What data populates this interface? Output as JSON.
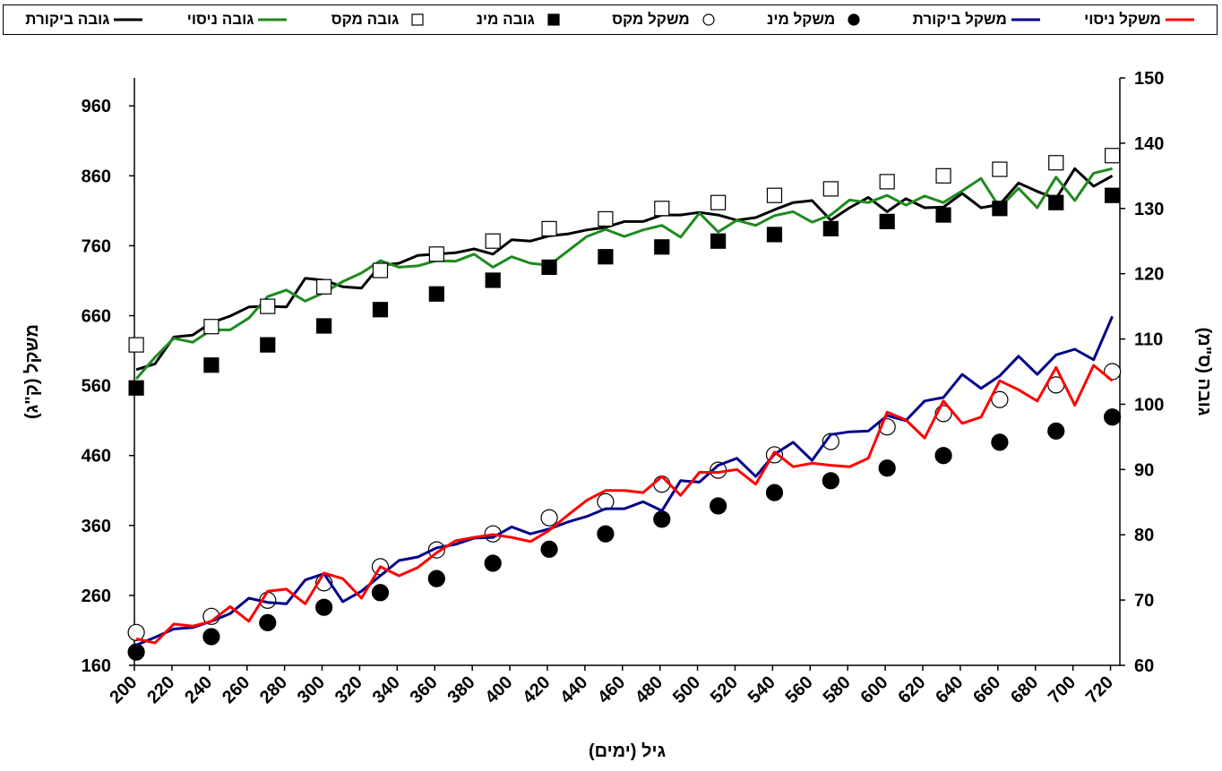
{
  "chart_data": {
    "type": "line",
    "xlabel": "גיל (ימים)",
    "ylabel": "משקל (ק\"ג)",
    "y2label": "גובה (ס\"מ)",
    "xlim": [
      200,
      725
    ],
    "xticks": [
      200,
      220,
      240,
      260,
      280,
      300,
      320,
      340,
      360,
      380,
      400,
      420,
      440,
      460,
      480,
      500,
      520,
      540,
      560,
      580,
      600,
      620,
      640,
      660,
      680,
      700,
      720
    ],
    "ylim": [
      160,
      1000
    ],
    "yticks": [
      160,
      260,
      360,
      460,
      560,
      660,
      760,
      860,
      960
    ],
    "y2lim": [
      60,
      150
    ],
    "y2ticks": [
      60,
      70,
      80,
      90,
      100,
      110,
      120,
      130,
      140,
      150
    ],
    "series": [
      {
        "name": "גובה ביקורת",
        "color": "#000000",
        "marker": "line",
        "axis": "y2",
        "x": [
          201,
          211,
          221,
          231,
          241,
          251,
          261,
          271,
          281,
          291,
          301,
          311,
          321,
          331,
          341,
          351,
          361,
          371,
          381,
          391,
          401,
          411,
          421,
          431,
          441,
          451,
          461,
          471,
          481,
          491,
          501,
          511,
          521,
          531,
          541,
          551,
          561,
          571,
          581,
          591,
          601,
          611,
          621,
          631,
          641,
          651,
          661,
          671,
          681,
          691,
          701,
          711,
          721
        ],
        "values": [
          105.3,
          106.2,
          110.3,
          110.6,
          112.5,
          113.5,
          114.9,
          115,
          114.9,
          119.3,
          119,
          118,
          117.8,
          121.3,
          121.6,
          122.8,
          123,
          123.2,
          123.8,
          123,
          125.2,
          125,
          125.8,
          126.1,
          126.7,
          127.1,
          128,
          128,
          129,
          129,
          129.4,
          129,
          128.2,
          128.6,
          129.8,
          130.9,
          131.2,
          128.2,
          130.1,
          131.7,
          129.5,
          131.5,
          130.1,
          130.2,
          132.3,
          130.1,
          130.6,
          133.9,
          132.6,
          131.5,
          136.1,
          133.4,
          135
        ]
      },
      {
        "name": "גובה ניסוי",
        "color": "#1f8a1f",
        "marker": "line",
        "axis": "y2",
        "x": [
          201,
          211,
          221,
          231,
          241,
          251,
          261,
          271,
          281,
          291,
          301,
          311,
          321,
          331,
          341,
          351,
          361,
          371,
          381,
          391,
          401,
          411,
          421,
          431,
          441,
          451,
          461,
          471,
          481,
          491,
          501,
          511,
          521,
          531,
          541,
          551,
          561,
          571,
          581,
          591,
          601,
          611,
          621,
          631,
          641,
          651,
          661,
          671,
          681,
          691,
          701,
          711,
          721
        ],
        "values": [
          103.9,
          107.2,
          110.1,
          109.5,
          111.4,
          111.4,
          113.2,
          116.5,
          117.5,
          115.8,
          117.1,
          118.8,
          120.1,
          122,
          121,
          121.2,
          122,
          121.9,
          123,
          121,
          122.6,
          121.6,
          121.3,
          123.5,
          125.7,
          126.8,
          125.7,
          126.7,
          127.4,
          125.6,
          129.3,
          126.4,
          128.2,
          127.4,
          128.9,
          129.5,
          127.9,
          129,
          131.3,
          130.9,
          132,
          130.5,
          131.9,
          130.9,
          132.7,
          134.6,
          130.1,
          133.1,
          130.1,
          134.8,
          131.2,
          135.4,
          136.1
        ]
      },
      {
        "name": "גובה מקס",
        "color": "#000000",
        "marker": "square-open",
        "axis": "y2",
        "x": [
          201,
          241,
          271,
          301,
          331,
          361,
          391,
          421,
          451,
          481,
          511,
          541,
          571,
          601,
          631,
          661,
          691,
          721
        ],
        "values": [
          109.1,
          111.9,
          115,
          118,
          120.5,
          123,
          125,
          126.9,
          128.4,
          130,
          130.9,
          132,
          133,
          134.1,
          135,
          136,
          137,
          138.1
        ]
      },
      {
        "name": "גובה מינ",
        "color": "#000000",
        "marker": "square",
        "axis": "y2",
        "x": [
          201,
          241,
          271,
          301,
          331,
          361,
          391,
          421,
          451,
          481,
          511,
          541,
          571,
          601,
          631,
          661,
          691,
          721
        ],
        "values": [
          102.5,
          106,
          109.1,
          112,
          114.5,
          116.9,
          119,
          121,
          122.6,
          124.1,
          125,
          126,
          126.9,
          128,
          129,
          130,
          130.9,
          132
        ]
      },
      {
        "name": "משקל מקס",
        "color": "#000000",
        "marker": "circle-open",
        "axis": "y",
        "x": [
          201,
          241,
          271,
          301,
          331,
          361,
          391,
          421,
          451,
          481,
          511,
          541,
          571,
          601,
          631,
          661,
          691,
          721
        ],
        "values": [
          207,
          230,
          253,
          278,
          301,
          325,
          348,
          371,
          394,
          419,
          439,
          461,
          480,
          501,
          520,
          540,
          561,
          580
        ]
      },
      {
        "name": "משקל מינ",
        "color": "#000000",
        "marker": "circle",
        "axis": "y",
        "x": [
          201,
          241,
          271,
          301,
          331,
          361,
          391,
          421,
          451,
          481,
          511,
          541,
          571,
          601,
          631,
          661,
          691,
          721
        ],
        "values": [
          179,
          201,
          221,
          243,
          264,
          284,
          306,
          326,
          348,
          369,
          388,
          407,
          424,
          442,
          460,
          479,
          495,
          515
        ]
      },
      {
        "name": "משקל ביקורת",
        "color": "#00008b",
        "marker": "line",
        "axis": "y",
        "x": [
          201,
          211,
          221,
          231,
          241,
          251,
          261,
          271,
          281,
          291,
          301,
          311,
          321,
          331,
          341,
          351,
          361,
          371,
          381,
          391,
          401,
          411,
          421,
          431,
          441,
          451,
          461,
          471,
          481,
          491,
          501,
          511,
          521,
          531,
          541,
          551,
          561,
          571,
          581,
          591,
          601,
          611,
          621,
          631,
          641,
          651,
          661,
          671,
          681,
          691,
          701,
          711,
          721
        ],
        "values": [
          189,
          200,
          212,
          214,
          223,
          234,
          256,
          250,
          248,
          282,
          291,
          251,
          266,
          288,
          310,
          315,
          328,
          333,
          342,
          343,
          358,
          348,
          355,
          365,
          373,
          384,
          384,
          394,
          381,
          424,
          422,
          446,
          456,
          430,
          462,
          479,
          453,
          490,
          494,
          495,
          517,
          510,
          538,
          543,
          576,
          556,
          574,
          602,
          576,
          604,
          612,
          597,
          659
        ]
      },
      {
        "name": "משקל ניסוי",
        "color": "#ff0000",
        "marker": "line",
        "axis": "y",
        "x": [
          201,
          211,
          221,
          231,
          241,
          251,
          261,
          271,
          281,
          291,
          301,
          311,
          321,
          331,
          341,
          351,
          361,
          371,
          381,
          391,
          401,
          411,
          421,
          431,
          441,
          451,
          461,
          471,
          481,
          491,
          501,
          511,
          521,
          531,
          541,
          551,
          561,
          571,
          581,
          591,
          601,
          611,
          621,
          631,
          641,
          651,
          661,
          671,
          681,
          691,
          701,
          711,
          721
        ],
        "values": [
          198,
          192,
          219,
          216,
          223,
          244,
          223,
          266,
          269,
          248,
          292,
          284,
          256,
          301,
          288,
          300,
          321,
          338,
          343,
          347,
          343,
          337,
          353,
          375,
          396,
          410,
          410,
          407,
          430,
          403,
          436,
          436,
          440,
          419,
          465,
          444,
          449,
          446,
          444,
          456,
          522,
          511,
          485,
          538,
          506,
          515,
          567,
          554,
          538,
          586,
          532,
          589,
          567
        ]
      }
    ]
  }
}
